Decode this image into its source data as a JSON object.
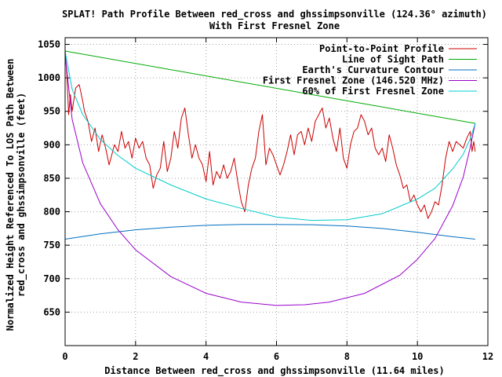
{
  "chart_data": {
    "type": "line",
    "title": "SPLAT! Path Profile Between red_cross and ghssimpsonville (124.36° azimuth)",
    "subtitle": "With First Fresnel Zone",
    "xlabel": "Distance Between red_cross and ghssimpsonville (11.64 miles)",
    "ylabel_line1": "Normalized Height Referenced To LOS Path Between",
    "ylabel_line2": "red_cross and ghssimpsonville (feet)",
    "xlim": [
      0,
      12
    ],
    "ylim": [
      600,
      1060
    ],
    "xticks": [
      0,
      2,
      4,
      6,
      8,
      10,
      12
    ],
    "yticks": [
      650,
      700,
      750,
      800,
      850,
      900,
      950,
      1000,
      1050
    ],
    "grid": true,
    "legend_position": "top-right",
    "series": [
      {
        "name": "Point-to-Point Profile",
        "color": "#cc0000",
        "x": [
          0.0,
          0.05,
          0.1,
          0.15,
          0.2,
          0.3,
          0.4,
          0.5,
          0.55,
          0.65,
          0.75,
          0.85,
          0.95,
          1.05,
          1.15,
          1.25,
          1.3,
          1.4,
          1.5,
          1.6,
          1.7,
          1.8,
          1.9,
          2.0,
          2.1,
          2.2,
          2.3,
          2.4,
          2.5,
          2.6,
          2.7,
          2.8,
          2.9,
          3.0,
          3.1,
          3.2,
          3.3,
          3.4,
          3.5,
          3.6,
          3.7,
          3.8,
          3.9,
          4.0,
          4.1,
          4.2,
          4.3,
          4.4,
          4.5,
          4.6,
          4.7,
          4.8,
          4.9,
          5.0,
          5.1,
          5.2,
          5.3,
          5.4,
          5.5,
          5.6,
          5.7,
          5.8,
          5.9,
          6.0,
          6.1,
          6.2,
          6.3,
          6.4,
          6.5,
          6.6,
          6.7,
          6.8,
          6.9,
          7.0,
          7.1,
          7.2,
          7.3,
          7.4,
          7.5,
          7.6,
          7.7,
          7.8,
          7.9,
          8.0,
          8.1,
          8.2,
          8.3,
          8.4,
          8.5,
          8.6,
          8.7,
          8.8,
          8.9,
          9.0,
          9.1,
          9.2,
          9.3,
          9.4,
          9.5,
          9.6,
          9.7,
          9.8,
          9.9,
          10.0,
          10.1,
          10.2,
          10.3,
          10.4,
          10.5,
          10.6,
          10.7,
          10.8,
          10.9,
          11.0,
          11.1,
          11.2,
          11.3,
          11.4,
          11.5,
          11.55,
          11.6,
          11.64
        ],
        "y": [
          1040,
          1005,
          945,
          975,
          950,
          985,
          990,
          965,
          950,
          935,
          905,
          925,
          890,
          915,
          895,
          870,
          880,
          900,
          890,
          920,
          895,
          905,
          880,
          910,
          895,
          905,
          880,
          870,
          835,
          855,
          865,
          905,
          860,
          880,
          920,
          895,
          940,
          955,
          915,
          880,
          900,
          880,
          870,
          845,
          890,
          840,
          860,
          850,
          870,
          850,
          860,
          880,
          845,
          815,
          800,
          840,
          865,
          880,
          920,
          945,
          870,
          895,
          885,
          870,
          855,
          870,
          890,
          915,
          885,
          915,
          920,
          900,
          925,
          905,
          935,
          945,
          955,
          925,
          940,
          910,
          890,
          925,
          880,
          865,
          900,
          920,
          925,
          945,
          935,
          915,
          925,
          895,
          885,
          895,
          875,
          915,
          895,
          870,
          855,
          835,
          840,
          815,
          825,
          810,
          800,
          810,
          790,
          800,
          815,
          810,
          840,
          880,
          905,
          890,
          905,
          900,
          895,
          910,
          920,
          890,
          905,
          890
        ]
      },
      {
        "name": "Line of Sight Path",
        "color": "#00aa00",
        "x": [
          0,
          11.64
        ],
        "y": [
          1040,
          932
        ]
      },
      {
        "name": "Earth's Curvature Contour",
        "color": "#0070c0",
        "x": [
          0,
          1,
          2,
          3,
          4,
          5,
          5.82,
          7,
          8,
          9,
          10,
          11,
          11.64
        ],
        "y": [
          759,
          767,
          773,
          777,
          779.7,
          780.9,
          781,
          780.6,
          778.6,
          775,
          769.2,
          762.6,
          759
        ]
      },
      {
        "name": "First Fresnel Zone (146.520 MHz)",
        "color": "#9900cc",
        "x": [
          0,
          0.2,
          0.5,
          1,
          1.5,
          2,
          3,
          4,
          5,
          6,
          6.8,
          7.5,
          8.5,
          9.5,
          10,
          10.5,
          11,
          11.3,
          11.5,
          11.64
        ],
        "y": [
          1035,
          938,
          873,
          812,
          773,
          743,
          703,
          678,
          665,
          660,
          661,
          665,
          678,
          705,
          729,
          760,
          809,
          852,
          896,
          932
        ]
      },
      {
        "name": "60% of First Fresnel Zone",
        "color": "#00cccc",
        "x": [
          0,
          0.2,
          0.5,
          1,
          1.5,
          2,
          3,
          4,
          5,
          6,
          7,
          8,
          9,
          10,
          10.5,
          11,
          11.3,
          11.5,
          11.64
        ],
        "y": [
          1040,
          983,
          945,
          908,
          884,
          865,
          840,
          819,
          805,
          792,
          787,
          788,
          797,
          819,
          835,
          864,
          886,
          909,
          932
        ]
      }
    ]
  }
}
